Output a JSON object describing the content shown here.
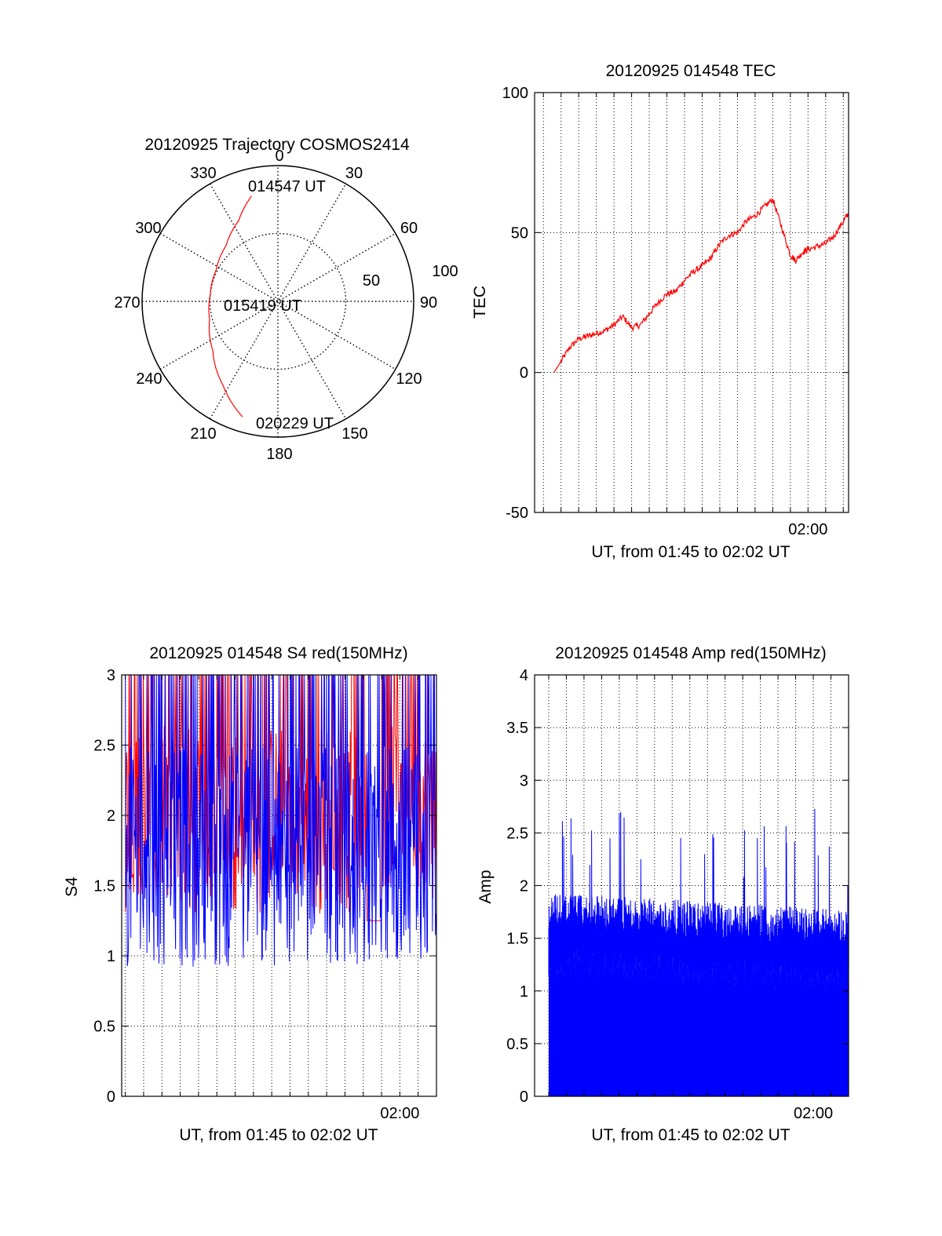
{
  "colors": {
    "red": "#ff0000",
    "blue": "#0000ff",
    "axis": "#000000",
    "grid": "#000000"
  },
  "chart_data": [
    {
      "id": "trajectory",
      "type": "polar",
      "title": "20120925 Trajectory COSMOS2414",
      "azimuth_labels": [
        "0",
        "30",
        "60",
        "90",
        "120",
        "150",
        "180",
        "210",
        "240",
        "270",
        "300",
        "330"
      ],
      "radial_labels": [
        "50",
        "100"
      ],
      "grid": true,
      "track": {
        "color": "#ff0000",
        "points": [
          {
            "az": 346,
            "r": 80
          },
          {
            "az": 334,
            "r": 66
          },
          {
            "az": 317,
            "r": 56
          },
          {
            "az": 297,
            "r": 51
          },
          {
            "az": 276,
            "r": 50
          },
          {
            "az": 255,
            "r": 52
          },
          {
            "az": 233,
            "r": 60
          },
          {
            "az": 213,
            "r": 74
          },
          {
            "az": 197,
            "r": 89
          }
        ]
      },
      "annotations": [
        "014547 UT",
        "015419 UT",
        "020229 UT"
      ]
    },
    {
      "id": "tec",
      "type": "line",
      "title": "20120925 014548 TEC",
      "xlabel": "UT, from 01:45 to 02:02 UT",
      "ylabel": "TEC",
      "xlim": [
        -0.5,
        17.3
      ],
      "ylim": [
        -50,
        100
      ],
      "yticks": [
        "-50",
        "0",
        "50",
        "100"
      ],
      "xtick_label": {
        "x": 15.0,
        "text": "02:00"
      },
      "grid": true,
      "series": [
        {
          "color": "#ff0000",
          "x": [
            0.6,
            1.0,
            1.5,
            2.0,
            2.5,
            3.0,
            3.5,
            4.0,
            4.5,
            5.0,
            5.5,
            6.0,
            6.5,
            7.0,
            7.5,
            8.0,
            8.5,
            9.0,
            9.5,
            10.0,
            10.5,
            11.0,
            11.5,
            12.0,
            12.5,
            13.0,
            13.5,
            14.0,
            14.3,
            14.7,
            15.0,
            15.5,
            16.0,
            16.5,
            17.0,
            17.3
          ],
          "y": [
            0,
            4,
            9,
            12,
            13,
            14,
            15,
            17,
            20,
            16,
            17,
            21,
            25,
            28,
            29,
            33,
            36,
            38,
            41,
            46,
            49,
            50,
            54,
            56,
            59,
            62,
            52,
            42,
            40,
            43,
            44,
            45,
            46,
            49,
            54,
            57
          ]
        }
      ]
    },
    {
      "id": "s4",
      "type": "line",
      "title": "20120925 014548 S4 red(150MHz)",
      "xlabel": "UT, from 01:45 to 02:02 UT",
      "ylabel": "S4",
      "xlim": [
        -0.2,
        17.0
      ],
      "ylim": [
        0,
        3
      ],
      "yticks": [
        "0",
        "0.5",
        "1",
        "1.5",
        "2",
        "2.5",
        "3"
      ],
      "xtick_label": {
        "x": 15.0,
        "text": "02:00"
      },
      "grid": true,
      "series": [
        {
          "name": "",
          "color": "#ff0000",
          "x_start": 0.0,
          "x_end": 17.0,
          "mean": 2.1,
          "spread": 0.55,
          "min": 1.3,
          "max": 3.0,
          "dip": {
            "x_from": 13.2,
            "x_to": 14.0,
            "min": 0.55,
            "max": 1.3
          }
        },
        {
          "name": "",
          "color": "#0000ff",
          "x_start": 0.0,
          "x_end": 17.0,
          "mean": 1.95,
          "spread": 0.55,
          "min": 0.92,
          "max": 3.0
        }
      ]
    },
    {
      "id": "amp",
      "type": "area",
      "title": "20120925 014548 Amp red(150MHz)",
      "xlabel": "UT, from 01:45 to 02:02 UT",
      "ylabel": "Amp",
      "xlim": [
        -0.8,
        17.0
      ],
      "ylim": [
        0,
        4
      ],
      "yticks": [
        "0",
        "0.5",
        "1",
        "1.5",
        "2",
        "2.5",
        "3",
        "3.5",
        "4"
      ],
      "xtick_label": {
        "x": 15.0,
        "text": "02:00"
      },
      "grid": true,
      "series": [
        {
          "name": "",
          "color": "#0000ff",
          "x_start": 0.0,
          "x_end": 17.0,
          "envelope_start": 1.75,
          "envelope_end": 1.6,
          "noise": 0.18,
          "spikes_max": 2.8
        }
      ]
    }
  ]
}
